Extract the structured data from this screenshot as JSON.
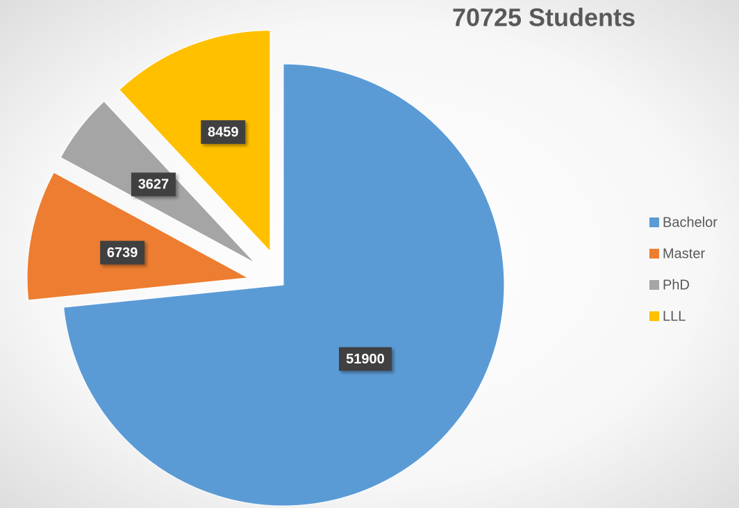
{
  "chart_data": {
    "type": "pie",
    "title": "70725 Students",
    "categories": [
      "Bachelor",
      "Master",
      "PhD",
      "LLL"
    ],
    "values": [
      51900,
      6739,
      3627,
      8459
    ],
    "colors": [
      "#5b9bd5",
      "#ed7d31",
      "#a5a5a5",
      "#ffc000"
    ],
    "legend": "right"
  }
}
